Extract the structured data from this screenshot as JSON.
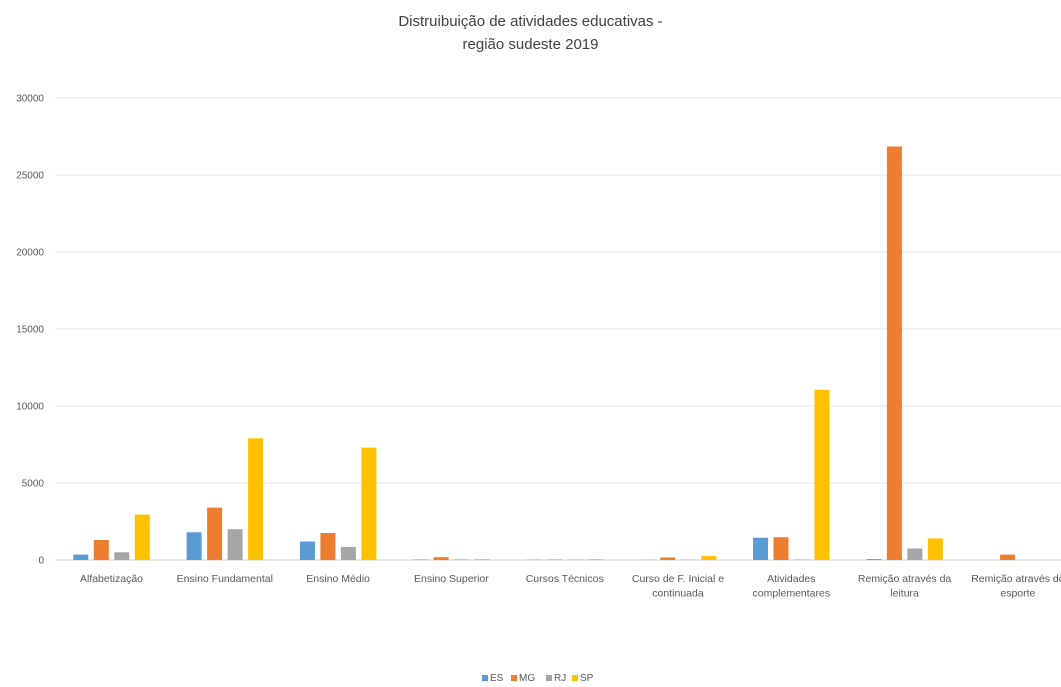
{
  "chart_data": {
    "type": "bar",
    "title_line1": "Distruibuição de atividades educativas -",
    "title_line2": "região sudeste 2019",
    "xlabel": "",
    "ylabel": "",
    "ylim": [
      0,
      30000
    ],
    "yticks": [
      "0",
      "5000",
      "10000",
      "15000",
      "20000",
      "25000",
      "30000"
    ],
    "grid": true,
    "legend_position": "bottom",
    "categories": [
      [
        "Alfabetização"
      ],
      [
        "Ensino Fundamental"
      ],
      [
        "Ensino Médio"
      ],
      [
        "Ensino Superior"
      ],
      [
        "Cursos Técnicos"
      ],
      [
        "Curso de F. Inicial e",
        "continuada"
      ],
      [
        "Atividades",
        "complementares"
      ],
      [
        "Remição através da",
        "leitura"
      ],
      [
        "Remição através do",
        "esporte"
      ]
    ],
    "series": [
      {
        "name": "ES",
        "color": "#5B9BD5",
        "values": [
          350,
          1800,
          1200,
          30,
          20,
          10,
          1450,
          60,
          0
        ]
      },
      {
        "name": "MG",
        "color": "#ED7D31",
        "values": [
          1300,
          3400,
          1750,
          180,
          30,
          170,
          1480,
          26850,
          350
        ]
      },
      {
        "name": "RJ",
        "color": "#A5A5A5",
        "values": [
          500,
          2000,
          850,
          40,
          30,
          20,
          30,
          750,
          0
        ]
      },
      {
        "name": "SP",
        "color": "#FFC000",
        "values": [
          2950,
          7900,
          7300,
          60,
          60,
          250,
          11050,
          1400,
          0
        ]
      }
    ]
  }
}
